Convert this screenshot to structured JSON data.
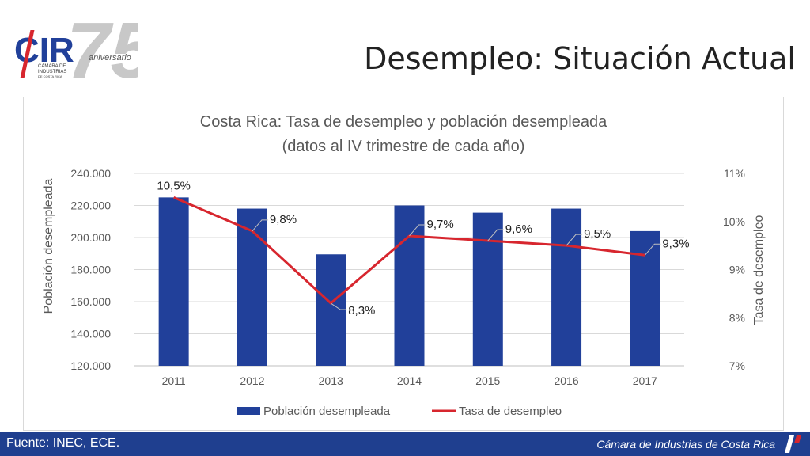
{
  "header": {
    "title": "Desempleo: Situación Actual",
    "logo": {
      "letters": "CIR",
      "number": "75",
      "tagline": "aniversario",
      "subtitle_lines": [
        "CÁMARA DE",
        "INDUSTRIAS",
        "DE COSTA RICA"
      ]
    }
  },
  "footer": {
    "source": "Fuente: INEC, ECE.",
    "organization": "Cámara de Industrias de Costa Rica"
  },
  "colors": {
    "bar": "#21409a",
    "line": "#d7262e",
    "footer": "#1f3f8f",
    "logo_red": "#d7262e",
    "logo_blue": "#21409a"
  },
  "chart_data": {
    "type": "bar",
    "title": "Costa Rica: Tasa de desempleo y población desempleada",
    "subtitle": "(datos al IV trimestre de cada año)",
    "categories": [
      "2011",
      "2012",
      "2013",
      "2014",
      "2015",
      "2016",
      "2017"
    ],
    "series": [
      {
        "name": "Población desempleada",
        "type": "bar",
        "axis": "left",
        "values": [
          225000,
          218000,
          189500,
          220000,
          215500,
          218000,
          204000
        ]
      },
      {
        "name": "Tasa de desempleo",
        "type": "line",
        "axis": "right",
        "values": [
          10.5,
          9.8,
          8.3,
          9.7,
          9.6,
          9.5,
          9.3
        ],
        "labels": [
          "10,5%",
          "9,8%",
          "8,3%",
          "9,7%",
          "9,6%",
          "9,5%",
          "9,3%"
        ]
      }
    ],
    "ylabel": "Población desempleada",
    "ylabel_right": "Tasa de desempleo",
    "ylim": [
      120000,
      240000
    ],
    "ylim_right": [
      7,
      11
    ],
    "yticks": [
      "120.000",
      "140.000",
      "160.000",
      "180.000",
      "200.000",
      "220.000",
      "240.000"
    ],
    "yticks_right": [
      "7%",
      "8%",
      "9%",
      "10%",
      "11%"
    ],
    "grid": true,
    "legend": "bottom"
  }
}
